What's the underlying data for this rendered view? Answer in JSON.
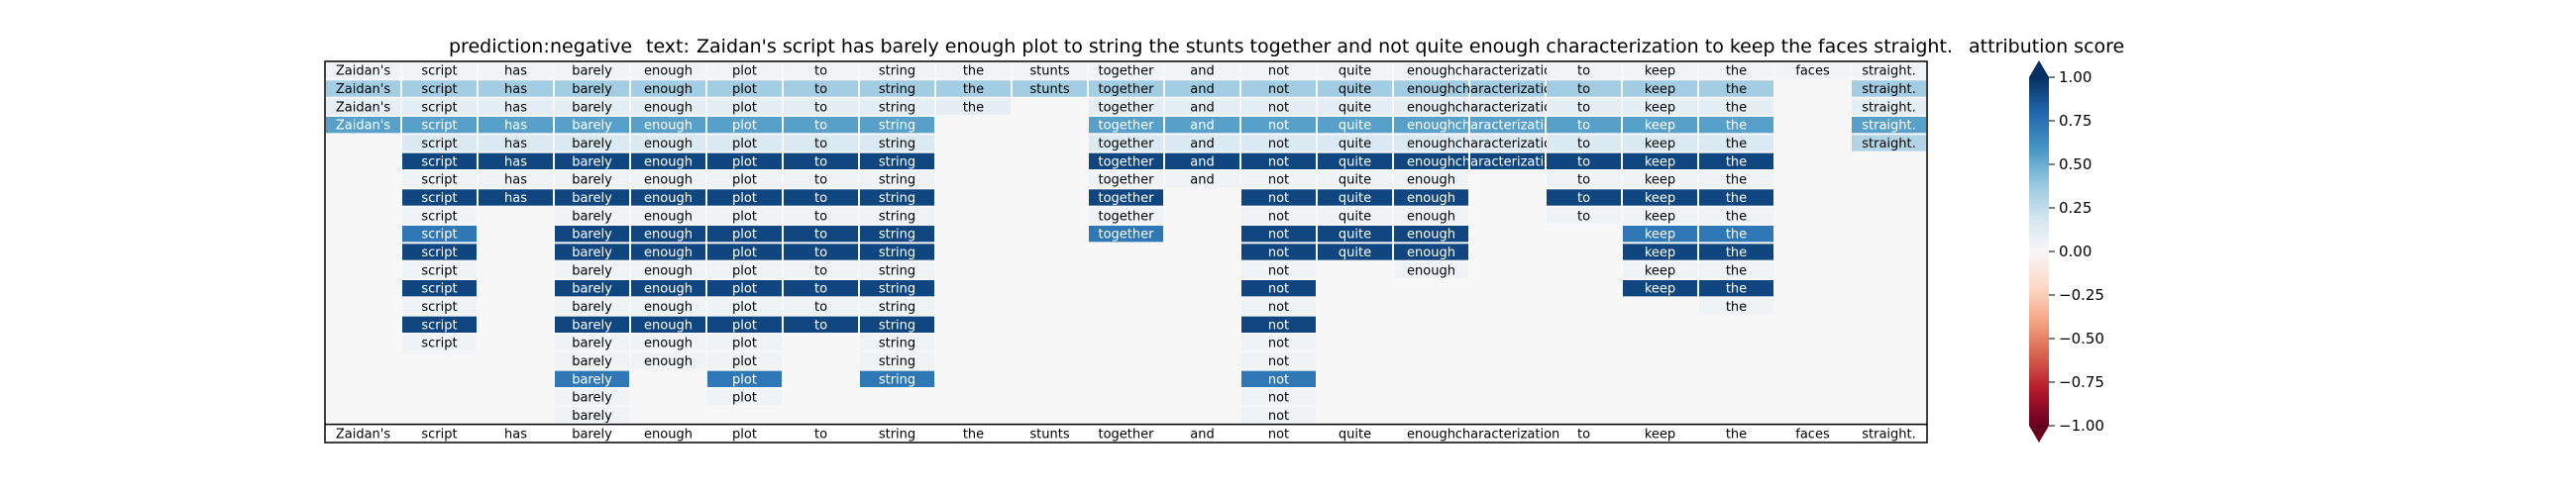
{
  "header": {
    "prediction_label": "prediction:",
    "prediction_value": "negative",
    "text_label": "text:",
    "text_value": "Zaidan's script has barely enough plot to string the stunts together and not quite enough characterization to keep the faces straight."
  },
  "colorbar": {
    "title": "attribution score",
    "ticks": [
      "1.00",
      "0.75",
      "0.50",
      "0.25",
      "0.00",
      "−0.25",
      "−0.50",
      "−0.75",
      "−1.00"
    ],
    "tick_values": [
      1.0,
      0.75,
      0.5,
      0.25,
      0.0,
      -0.25,
      -0.5,
      -0.75,
      -1.0
    ],
    "colormap": "RdBu",
    "extend": "both"
  },
  "chart_data": {
    "type": "heatmap",
    "title": "prediction: negative text: Zaidan's script has barely enough plot to string the stunts together and not quite enough characterization to keep the faces straight.",
    "tokens": [
      "Zaidan's",
      "script",
      "has",
      "barely",
      "enough",
      "plot",
      "to",
      "string",
      "the",
      "stunts",
      "together",
      "and",
      "not",
      "quite",
      "enough",
      "characterization",
      "to",
      "keep",
      "the",
      "faces",
      "straight."
    ],
    "vmin": -1.0,
    "vmax": 1.0,
    "rows": [
      [
        0.03,
        0.03,
        0.03,
        0.03,
        0.03,
        0.03,
        0.03,
        0.03,
        0.03,
        0.03,
        0.03,
        0.03,
        0.03,
        0.03,
        0.03,
        0.03,
        0.03,
        0.03,
        0.03,
        0.03,
        0.03
      ],
      [
        0.35,
        0.35,
        0.35,
        0.35,
        0.35,
        0.35,
        0.35,
        0.35,
        0.35,
        0.35,
        0.35,
        0.35,
        0.35,
        0.35,
        0.35,
        0.35,
        0.35,
        0.35,
        0.35,
        null,
        0.35
      ],
      [
        0.1,
        0.1,
        0.1,
        0.1,
        0.1,
        0.1,
        0.1,
        0.1,
        0.1,
        null,
        0.1,
        0.1,
        0.1,
        0.1,
        0.1,
        0.1,
        0.1,
        0.1,
        0.1,
        null,
        0.1
      ],
      [
        0.55,
        0.55,
        0.55,
        0.55,
        0.55,
        0.55,
        0.55,
        0.55,
        null,
        null,
        0.55,
        0.55,
        0.55,
        0.55,
        0.55,
        0.55,
        0.55,
        0.55,
        0.55,
        null,
        0.55
      ],
      [
        null,
        0.15,
        0.15,
        0.15,
        0.15,
        0.15,
        0.15,
        0.15,
        null,
        null,
        0.15,
        0.15,
        0.15,
        0.15,
        0.15,
        0.15,
        0.15,
        0.15,
        0.15,
        null,
        0.3
      ],
      [
        null,
        0.92,
        0.92,
        0.92,
        0.92,
        0.92,
        0.92,
        0.92,
        null,
        null,
        0.92,
        0.92,
        0.92,
        0.92,
        0.92,
        0.92,
        0.92,
        0.92,
        0.92,
        null,
        null
      ],
      [
        null,
        0.04,
        0.04,
        0.04,
        0.04,
        0.04,
        0.04,
        0.04,
        null,
        null,
        0.04,
        0.04,
        0.04,
        0.04,
        0.04,
        null,
        0.04,
        0.04,
        0.04,
        null,
        null
      ],
      [
        null,
        0.92,
        0.92,
        0.92,
        0.92,
        0.92,
        0.92,
        0.92,
        null,
        null,
        0.92,
        null,
        0.92,
        0.92,
        0.92,
        null,
        0.92,
        0.92,
        0.92,
        null,
        null
      ],
      [
        null,
        0.04,
        null,
        0.04,
        0.04,
        0.04,
        0.04,
        0.04,
        null,
        null,
        0.04,
        null,
        0.04,
        0.04,
        0.04,
        null,
        0.04,
        0.04,
        0.04,
        null,
        null
      ],
      [
        null,
        0.72,
        null,
        0.92,
        0.92,
        0.92,
        0.92,
        0.92,
        null,
        null,
        0.72,
        null,
        0.92,
        0.92,
        0.92,
        null,
        null,
        0.72,
        0.72,
        null,
        null
      ],
      [
        null,
        0.92,
        null,
        0.92,
        0.92,
        0.92,
        0.92,
        0.92,
        null,
        null,
        null,
        null,
        0.92,
        0.92,
        0.92,
        null,
        null,
        0.92,
        0.92,
        null,
        null
      ],
      [
        null,
        0.04,
        null,
        0.04,
        0.04,
        0.04,
        0.04,
        0.04,
        null,
        null,
        null,
        null,
        0.04,
        null,
        0.04,
        null,
        null,
        0.04,
        0.04,
        null,
        null
      ],
      [
        null,
        0.92,
        null,
        0.92,
        0.92,
        0.92,
        0.92,
        0.92,
        null,
        null,
        null,
        null,
        0.92,
        null,
        null,
        null,
        null,
        0.92,
        0.92,
        null,
        null
      ],
      [
        null,
        0.04,
        null,
        0.04,
        0.04,
        0.04,
        0.04,
        0.04,
        null,
        null,
        null,
        null,
        0.04,
        null,
        null,
        null,
        null,
        null,
        0.04,
        null,
        null
      ],
      [
        null,
        0.92,
        null,
        0.92,
        0.92,
        0.92,
        0.92,
        0.92,
        null,
        null,
        null,
        null,
        0.92,
        null,
        null,
        null,
        null,
        null,
        null,
        null,
        null
      ],
      [
        null,
        0.04,
        null,
        0.04,
        0.04,
        0.04,
        null,
        0.04,
        null,
        null,
        null,
        null,
        0.04,
        null,
        null,
        null,
        null,
        null,
        null,
        null,
        null
      ],
      [
        null,
        null,
        null,
        0.04,
        0.04,
        0.04,
        null,
        0.04,
        null,
        null,
        null,
        null,
        0.04,
        null,
        null,
        null,
        null,
        null,
        null,
        null,
        null
      ],
      [
        null,
        null,
        null,
        0.72,
        null,
        0.72,
        null,
        0.72,
        null,
        null,
        null,
        null,
        0.72,
        null,
        null,
        null,
        null,
        null,
        null,
        null,
        null
      ],
      [
        null,
        null,
        null,
        0.04,
        null,
        0.04,
        null,
        null,
        null,
        null,
        null,
        null,
        0.04,
        null,
        null,
        null,
        null,
        null,
        null,
        null,
        null
      ],
      [
        null,
        null,
        null,
        0.04,
        null,
        null,
        null,
        null,
        null,
        null,
        null,
        null,
        0.04,
        null,
        null,
        null,
        null,
        null,
        null,
        null,
        null
      ]
    ],
    "bottom_axis_labels": [
      "Zaidan's",
      "script",
      "has",
      "barely",
      "enough",
      "plot",
      "to",
      "string",
      "the",
      "stunts",
      "together",
      "and",
      "not",
      "quite",
      "enough",
      "characterization",
      "to",
      "keep",
      "the",
      "faces",
      "straight."
    ]
  }
}
